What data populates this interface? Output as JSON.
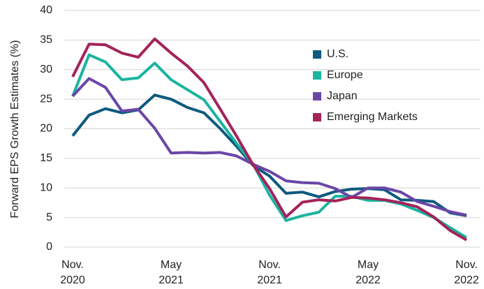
{
  "chart_data": {
    "type": "line",
    "y_label": "Forward EPS Growth Estimates (%)",
    "categories": [
      "Nov. 2020",
      null,
      null,
      null,
      null,
      null,
      "May 2021",
      null,
      null,
      null,
      null,
      null,
      "Nov. 2021",
      null,
      null,
      null,
      null,
      null,
      "May 2022",
      null,
      null,
      null,
      null,
      null,
      "Nov. 2022"
    ],
    "ylim": [
      0,
      40
    ],
    "yticks": [
      0,
      5,
      10,
      15,
      20,
      25,
      30,
      35,
      40
    ],
    "grid": true,
    "legend": "upper right",
    "series": [
      {
        "name": "U.S.",
        "color": "#0e5a7e",
        "values": [
          18.8,
          22.3,
          23.4,
          22.7,
          23.2,
          25.7,
          25.0,
          23.6,
          22.7,
          20.0,
          17.0,
          13.8,
          12.0,
          9.1,
          9.3,
          8.5,
          9.4,
          9.8,
          9.9,
          9.7,
          8.0,
          7.9,
          7.7,
          5.8,
          5.3
        ]
      },
      {
        "name": "Europe",
        "color": "#1bb49f",
        "values": [
          25.5,
          32.5,
          31.3,
          28.3,
          28.6,
          31.1,
          28.3,
          26.6,
          24.9,
          21.2,
          17.5,
          14.0,
          8.8,
          4.5,
          5.3,
          5.9,
          8.6,
          8.6,
          7.9,
          7.9,
          7.3,
          6.2,
          5.0,
          3.3,
          1.6
        ]
      },
      {
        "name": "Japan",
        "color": "#6b46a8",
        "values": [
          25.5,
          28.5,
          27.0,
          23.0,
          23.3,
          20.1,
          15.9,
          16.0,
          15.9,
          16.0,
          15.4,
          14.0,
          12.8,
          11.2,
          10.9,
          10.8,
          9.9,
          8.4,
          10.0,
          10.0,
          9.3,
          7.7,
          6.9,
          6.0,
          5.4
        ]
      },
      {
        "name": "Emerging Markets",
        "color": "#a3235a",
        "values": [
          28.8,
          34.3,
          34.2,
          32.8,
          32.1,
          35.2,
          32.8,
          30.6,
          27.8,
          23.3,
          18.7,
          13.9,
          9.9,
          5.1,
          7.6,
          8.0,
          7.8,
          8.4,
          8.3,
          8.0,
          7.5,
          6.8,
          5.1,
          2.8,
          1.2
        ]
      }
    ]
  }
}
